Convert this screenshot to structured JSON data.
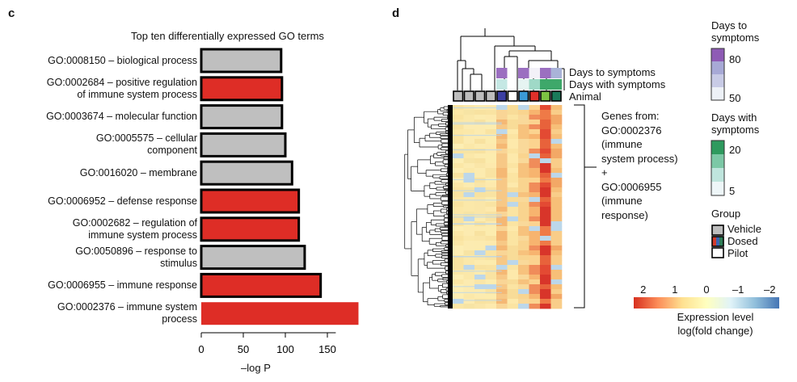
{
  "panel_c": {
    "letter": "c",
    "chart_data": {
      "type": "bar",
      "orientation": "horizontal",
      "title": "Top ten differentially expressed GO terms",
      "xlabel": "–log P",
      "xlim": [
        0,
        190
      ],
      "xticks": [
        0,
        50,
        100,
        150
      ],
      "categories": [
        {
          "lines": [
            "GO:0008150 – biological process"
          ],
          "value": 95,
          "color": "#bfbfbf",
          "outlined": true
        },
        {
          "lines": [
            "GO:0002684 – positive regulation",
            "of immune system process"
          ],
          "value": 96,
          "color": "#de2d26",
          "outlined": true
        },
        {
          "lines": [
            "GO:0003674 – molecular function"
          ],
          "value": 96,
          "color": "#bfbfbf",
          "outlined": true
        },
        {
          "lines": [
            "GO:0005575 – cellular",
            "component"
          ],
          "value": 100,
          "color": "#bfbfbf",
          "outlined": true
        },
        {
          "lines": [
            "GO:0016020 – membrane"
          ],
          "value": 108,
          "color": "#bfbfbf",
          "outlined": true
        },
        {
          "lines": [
            "GO:0006952 – defense response"
          ],
          "value": 116,
          "color": "#de2d26",
          "outlined": true
        },
        {
          "lines": [
            "GO:0002682 – regulation of",
            "immune system process"
          ],
          "value": 116,
          "color": "#de2d26",
          "outlined": true
        },
        {
          "lines": [
            "GO:0050896 – response to",
            "stimulus"
          ],
          "value": 123,
          "color": "#bfbfbf",
          "outlined": true
        },
        {
          "lines": [
            "GO:0006955 – immune response"
          ],
          "value": 142,
          "color": "#de2d26",
          "outlined": true
        },
        {
          "lines": [
            "GO:0002376 – immune system",
            "process"
          ],
          "value": 187,
          "color": "#de2d26",
          "outlined": false
        }
      ]
    }
  },
  "panel_d": {
    "letter": "d",
    "chart_data": {
      "type": "heatmap",
      "row_annotations": [
        "Days to symptoms",
        "Days with symptoms",
        "Animal"
      ],
      "columns": 10,
      "days_to_symptoms_cols": [
        "",
        "",
        "",
        "",
        "#9b6fc0",
        "",
        "#9b6fc0",
        "#f3f1f8",
        "#9b6fc0",
        "#a9b3d8"
      ],
      "days_with_symptoms_cols": [
        "",
        "",
        "",
        "",
        "#c5e8e4",
        "",
        "#e6f4f2",
        "#9fd9c7",
        "#3ea86a",
        "#3ea86a"
      ],
      "animal_cols": [
        "#bdbdbd",
        "#bdbdbd",
        "#bdbdbd",
        "#bdbdbd",
        "#3c3fa3",
        "#ffffff",
        "#3b9ad6",
        "#e0302a",
        "#7dc242",
        "#1b7a5a"
      ],
      "bracket_label": [
        "Genes from:",
        "GO:0002376",
        "(immune",
        "system process)",
        "+",
        "GO:0006955",
        "(immune",
        "response)"
      ],
      "colorbar": {
        "ticks": [
          2,
          1,
          0,
          -1,
          -2
        ],
        "tick_labels": [
          "2",
          "1",
          "0",
          "–1",
          "–2"
        ],
        "title_lines": [
          "Expression level",
          "log(fold change)"
        ],
        "colors": [
          "#d7301f",
          "#fc8d59",
          "#fee090",
          "#ffffbf",
          "#e0f3f8",
          "#91bfdb",
          "#4575b4"
        ]
      }
    },
    "legend": {
      "days_to": {
        "title_lines": [
          "Days to",
          "symptoms"
        ],
        "ticks": [
          "80",
          "50"
        ],
        "colors": [
          "#8e5bb5",
          "#a7a9d6",
          "#c8cbe6",
          "#edf1f7"
        ]
      },
      "days_with": {
        "title_lines": [
          "Days with",
          "symptoms"
        ],
        "ticks": [
          "20",
          "5"
        ],
        "colors": [
          "#2e9a5e",
          "#7cc8a6",
          "#bfe5dd",
          "#eef6f8"
        ]
      },
      "group": {
        "title": "Group",
        "items": [
          "Vehicle",
          "Dosed",
          "Pilot"
        ]
      }
    }
  }
}
